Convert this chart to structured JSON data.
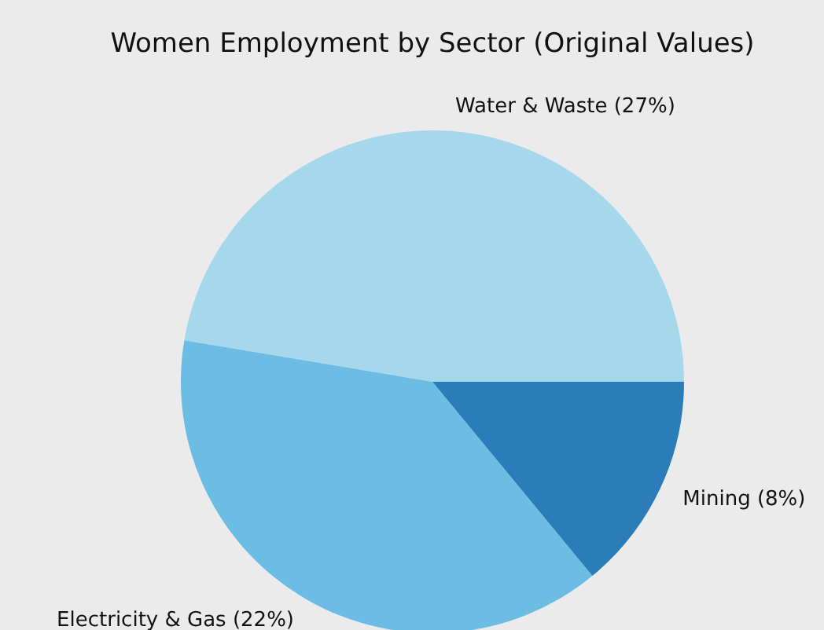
{
  "chart_data": {
    "type": "pie",
    "title": "Women Employment by Sector (Original Values)",
    "categories": [
      "Water & Waste (27%)",
      "Electricity & Gas (22%)",
      "Mining (8%)"
    ],
    "values": [
      27,
      22,
      8
    ],
    "colors": [
      "#a6d8ec",
      "#6bbde3",
      "#2a7db8"
    ]
  }
}
